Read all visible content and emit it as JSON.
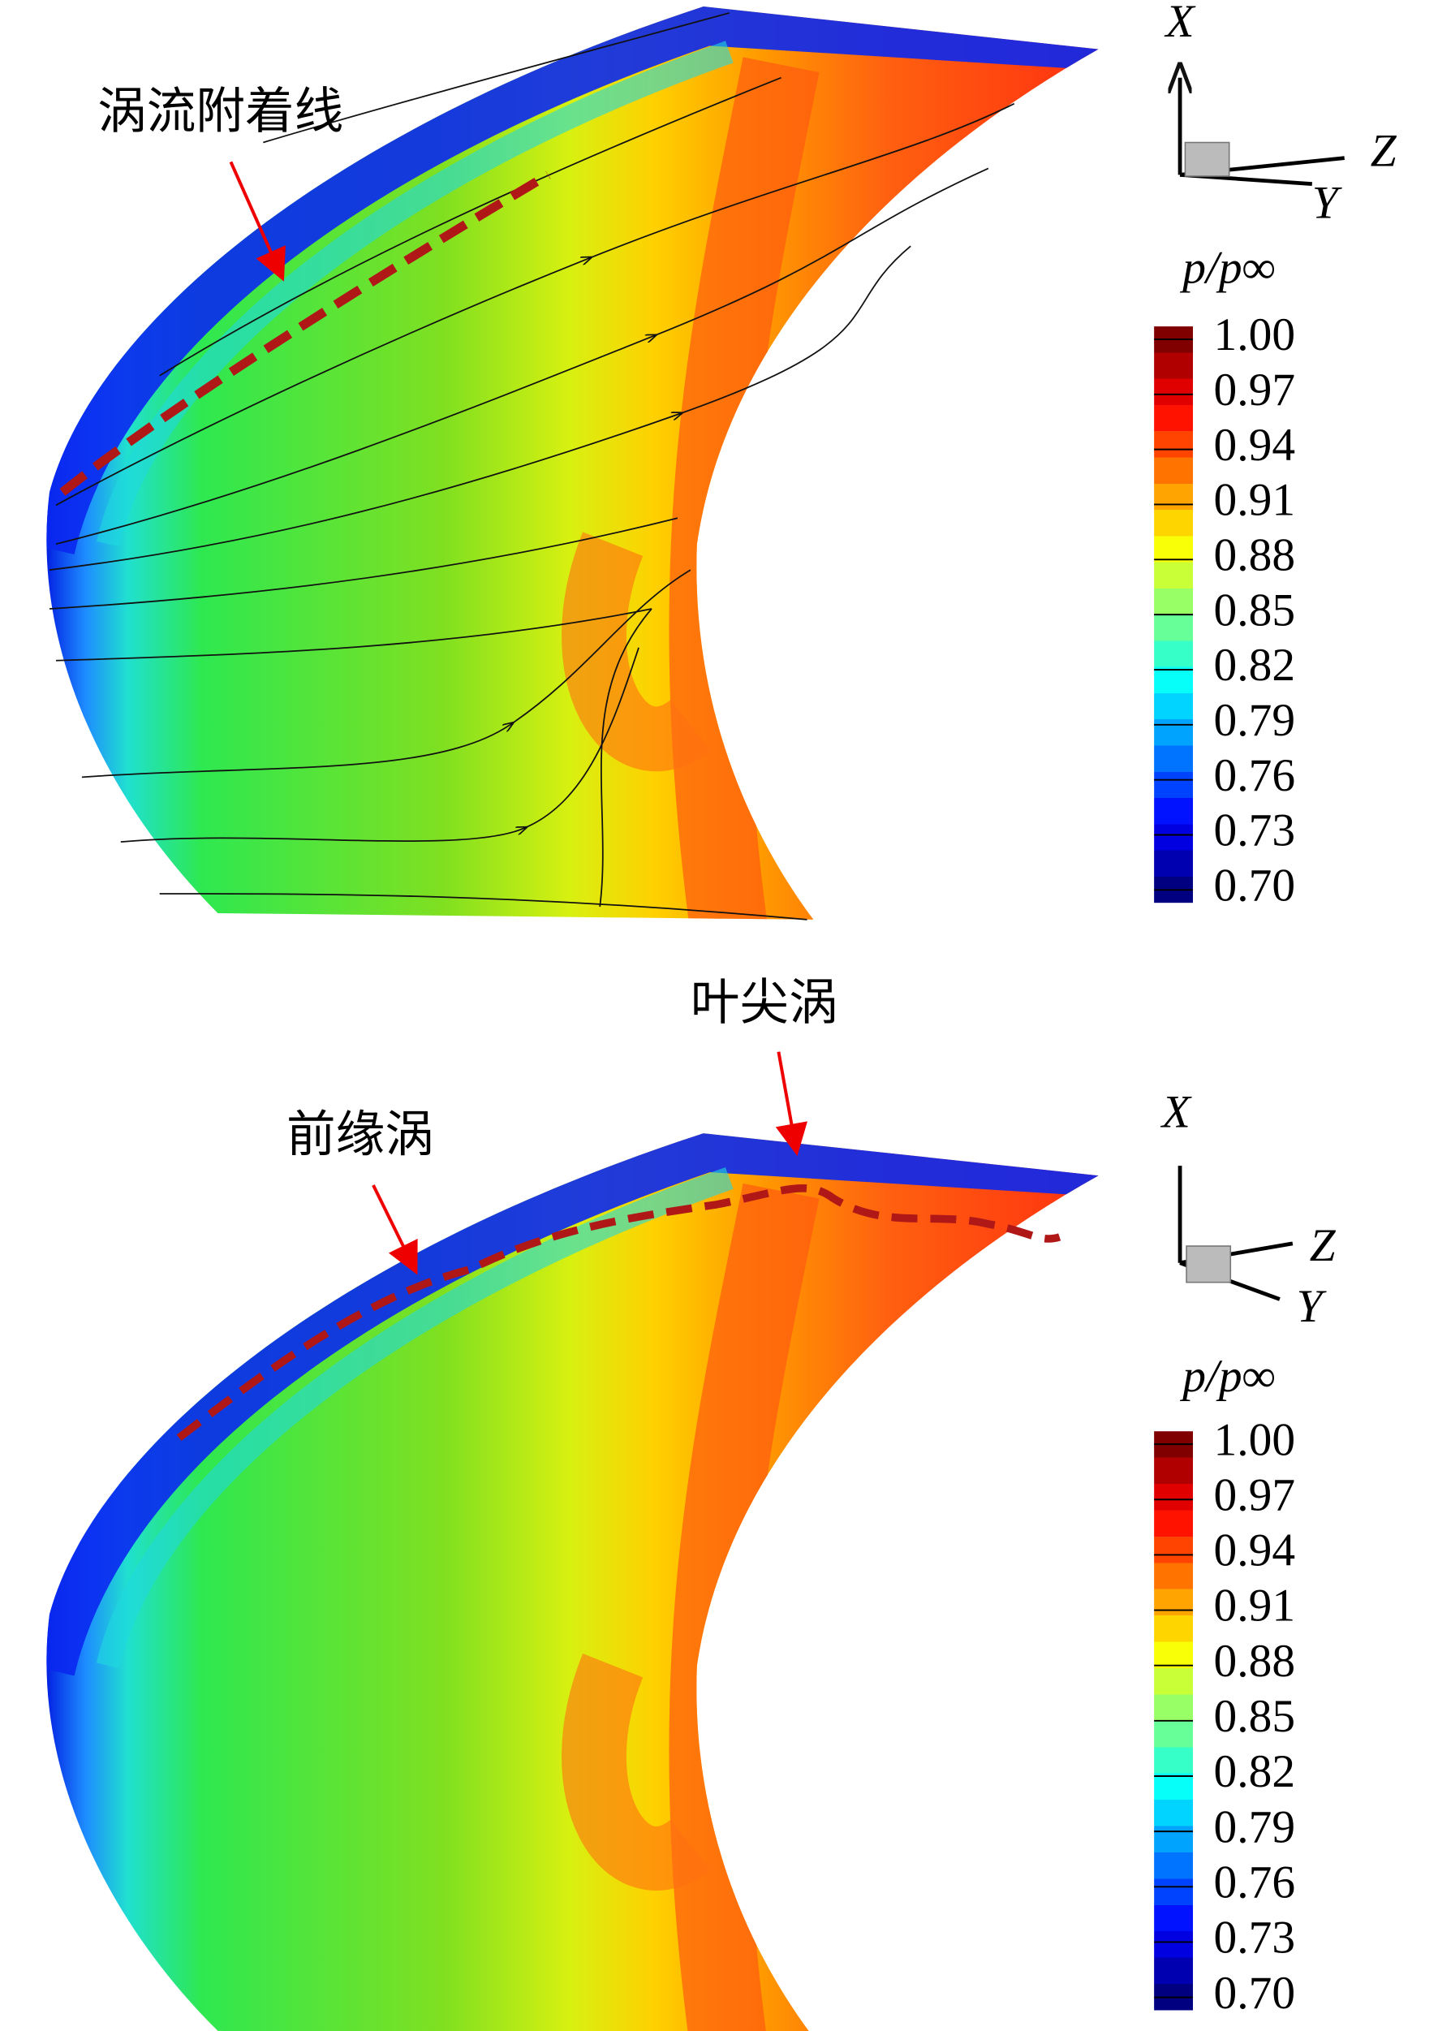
{
  "chart_data": [
    {
      "type": "contour",
      "colorbar_label": "p/p∞",
      "colormap": "jet",
      "clim": [
        0.693,
        1.007
      ],
      "cticks": [
        {
          "value": 1,
          "label": "1.00"
        },
        0.97,
        0.94,
        0.91,
        0.88,
        0.85,
        0.82,
        0.79,
        0.76,
        0.73,
        {
          "value": 0.7,
          "label": "0.70"
        }
      ],
      "axes": [
        "X",
        "Z",
        "Y"
      ],
      "annotations": [
        "涡流附着线"
      ]
    },
    {
      "type": "contour",
      "colorbar_label": "p/p∞",
      "colormap": "jet",
      "clim": [
        0.693,
        1.007
      ],
      "cticks": [
        {
          "value": 1,
          "label": "1.00"
        },
        0.97,
        0.94,
        0.91,
        0.88,
        0.85,
        0.82,
        0.79,
        0.76,
        0.73,
        {
          "value": 0.7,
          "label": "0.70"
        }
      ],
      "axes": [
        "X",
        "Z",
        "Y"
      ],
      "annotations": [
        "叶尖涡",
        "前缘涡"
      ]
    }
  ]
}
